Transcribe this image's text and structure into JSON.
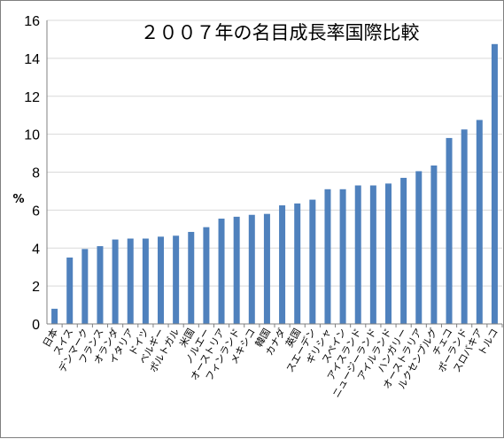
{
  "chart_data": {
    "type": "bar",
    "title": "２００７年の名目成長率国際比較",
    "ylabel": "%",
    "xlabel": "",
    "ylim": [
      0,
      16
    ],
    "yticks": [
      0,
      2,
      4,
      6,
      8,
      10,
      12,
      14,
      16
    ],
    "grid": true,
    "bar_color": "#4f81bd",
    "categories": [
      "日本",
      "スイス",
      "デンマーク",
      "フランス",
      "オランダ",
      "イタリア",
      "ドイツ",
      "ベルギー",
      "ポルトガル",
      "米国",
      "ノルエー",
      "オーストリア",
      "フィンランド",
      "メキシコ",
      "韓国",
      "カナダ",
      "英国",
      "スエーデン",
      "ギリシャ",
      "スペイン",
      "アイスランド",
      "ニュージーランド",
      "アイルランド",
      "ハンガリー",
      "オーストラリア",
      "ルクセンブルグ",
      "チェコ",
      "ポーランド",
      "スロバキア",
      "トルコ"
    ],
    "values": [
      0.8,
      3.5,
      3.95,
      4.1,
      4.45,
      4.5,
      4.5,
      4.6,
      4.65,
      4.85,
      5.1,
      5.55,
      5.65,
      5.75,
      5.8,
      6.25,
      6.35,
      6.55,
      7.1,
      7.1,
      7.3,
      7.3,
      7.4,
      7.7,
      8.05,
      8.35,
      9.8,
      10.25,
      10.75,
      14.75
    ]
  }
}
